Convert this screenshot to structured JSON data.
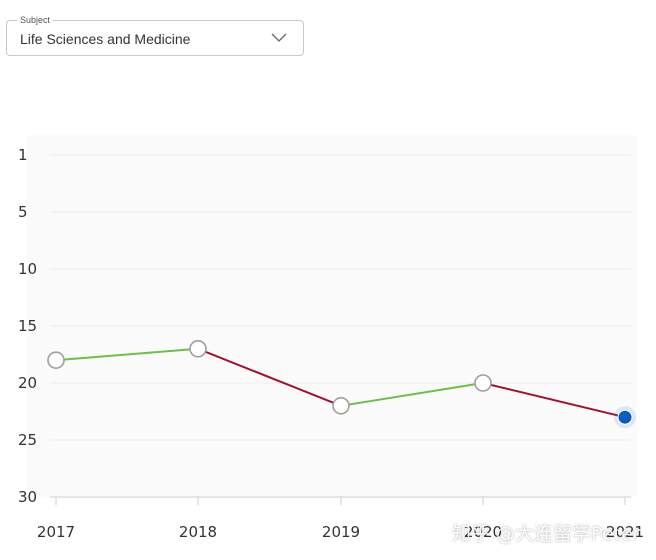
{
  "subject": {
    "legend": "Subject",
    "value": "Life Sciences and Medicine"
  },
  "watermark": "知乎 @大连留学Peter",
  "chart_data": {
    "type": "line",
    "title": "",
    "xlabel": "",
    "ylabel": "",
    "x": [
      "2017",
      "2018",
      "2019",
      "2020",
      "2021"
    ],
    "values": [
      18,
      17,
      22,
      20,
      23
    ],
    "ylim": [
      1,
      30
    ],
    "y_inverted": true,
    "y_ticks": [
      1,
      5,
      10,
      15,
      20,
      25,
      30
    ],
    "grid": true,
    "segment_colors": {
      "up": "#6cc04a",
      "down": "#a3102f"
    },
    "marker_color": "#9e9e9e",
    "highlight_color": "#0a5cbf",
    "highlight_index": 4
  }
}
